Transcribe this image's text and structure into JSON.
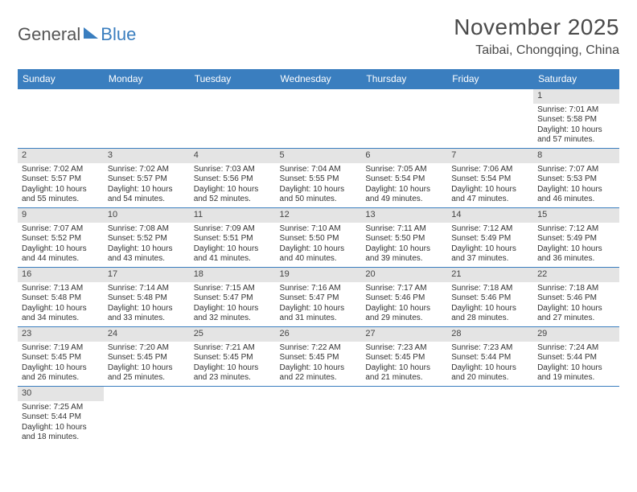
{
  "logo": {
    "part1": "General",
    "part2": "Blue"
  },
  "title": "November 2025",
  "location": "Taibai, Chongqing, China",
  "colors": {
    "header_bg": "#3a7ebf",
    "header_text": "#ffffff",
    "daynum_bg": "#e4e4e4",
    "border": "#3a7ebf",
    "text": "#333333",
    "page_bg": "#ffffff"
  },
  "fonts": {
    "title_size": 28,
    "location_size": 16,
    "dayhead_size": 12,
    "cell_size": 10
  },
  "day_headers": [
    "Sunday",
    "Monday",
    "Tuesday",
    "Wednesday",
    "Thursday",
    "Friday",
    "Saturday"
  ],
  "weeks": [
    [
      null,
      null,
      null,
      null,
      null,
      null,
      {
        "n": "1",
        "sunrise": "Sunrise: 7:01 AM",
        "sunset": "Sunset: 5:58 PM",
        "dl1": "Daylight: 10 hours",
        "dl2": "and 57 minutes."
      }
    ],
    [
      {
        "n": "2",
        "sunrise": "Sunrise: 7:02 AM",
        "sunset": "Sunset: 5:57 PM",
        "dl1": "Daylight: 10 hours",
        "dl2": "and 55 minutes."
      },
      {
        "n": "3",
        "sunrise": "Sunrise: 7:02 AM",
        "sunset": "Sunset: 5:57 PM",
        "dl1": "Daylight: 10 hours",
        "dl2": "and 54 minutes."
      },
      {
        "n": "4",
        "sunrise": "Sunrise: 7:03 AM",
        "sunset": "Sunset: 5:56 PM",
        "dl1": "Daylight: 10 hours",
        "dl2": "and 52 minutes."
      },
      {
        "n": "5",
        "sunrise": "Sunrise: 7:04 AM",
        "sunset": "Sunset: 5:55 PM",
        "dl1": "Daylight: 10 hours",
        "dl2": "and 50 minutes."
      },
      {
        "n": "6",
        "sunrise": "Sunrise: 7:05 AM",
        "sunset": "Sunset: 5:54 PM",
        "dl1": "Daylight: 10 hours",
        "dl2": "and 49 minutes."
      },
      {
        "n": "7",
        "sunrise": "Sunrise: 7:06 AM",
        "sunset": "Sunset: 5:54 PM",
        "dl1": "Daylight: 10 hours",
        "dl2": "and 47 minutes."
      },
      {
        "n": "8",
        "sunrise": "Sunrise: 7:07 AM",
        "sunset": "Sunset: 5:53 PM",
        "dl1": "Daylight: 10 hours",
        "dl2": "and 46 minutes."
      }
    ],
    [
      {
        "n": "9",
        "sunrise": "Sunrise: 7:07 AM",
        "sunset": "Sunset: 5:52 PM",
        "dl1": "Daylight: 10 hours",
        "dl2": "and 44 minutes."
      },
      {
        "n": "10",
        "sunrise": "Sunrise: 7:08 AM",
        "sunset": "Sunset: 5:52 PM",
        "dl1": "Daylight: 10 hours",
        "dl2": "and 43 minutes."
      },
      {
        "n": "11",
        "sunrise": "Sunrise: 7:09 AM",
        "sunset": "Sunset: 5:51 PM",
        "dl1": "Daylight: 10 hours",
        "dl2": "and 41 minutes."
      },
      {
        "n": "12",
        "sunrise": "Sunrise: 7:10 AM",
        "sunset": "Sunset: 5:50 PM",
        "dl1": "Daylight: 10 hours",
        "dl2": "and 40 minutes."
      },
      {
        "n": "13",
        "sunrise": "Sunrise: 7:11 AM",
        "sunset": "Sunset: 5:50 PM",
        "dl1": "Daylight: 10 hours",
        "dl2": "and 39 minutes."
      },
      {
        "n": "14",
        "sunrise": "Sunrise: 7:12 AM",
        "sunset": "Sunset: 5:49 PM",
        "dl1": "Daylight: 10 hours",
        "dl2": "and 37 minutes."
      },
      {
        "n": "15",
        "sunrise": "Sunrise: 7:12 AM",
        "sunset": "Sunset: 5:49 PM",
        "dl1": "Daylight: 10 hours",
        "dl2": "and 36 minutes."
      }
    ],
    [
      {
        "n": "16",
        "sunrise": "Sunrise: 7:13 AM",
        "sunset": "Sunset: 5:48 PM",
        "dl1": "Daylight: 10 hours",
        "dl2": "and 34 minutes."
      },
      {
        "n": "17",
        "sunrise": "Sunrise: 7:14 AM",
        "sunset": "Sunset: 5:48 PM",
        "dl1": "Daylight: 10 hours",
        "dl2": "and 33 minutes."
      },
      {
        "n": "18",
        "sunrise": "Sunrise: 7:15 AM",
        "sunset": "Sunset: 5:47 PM",
        "dl1": "Daylight: 10 hours",
        "dl2": "and 32 minutes."
      },
      {
        "n": "19",
        "sunrise": "Sunrise: 7:16 AM",
        "sunset": "Sunset: 5:47 PM",
        "dl1": "Daylight: 10 hours",
        "dl2": "and 31 minutes."
      },
      {
        "n": "20",
        "sunrise": "Sunrise: 7:17 AM",
        "sunset": "Sunset: 5:46 PM",
        "dl1": "Daylight: 10 hours",
        "dl2": "and 29 minutes."
      },
      {
        "n": "21",
        "sunrise": "Sunrise: 7:18 AM",
        "sunset": "Sunset: 5:46 PM",
        "dl1": "Daylight: 10 hours",
        "dl2": "and 28 minutes."
      },
      {
        "n": "22",
        "sunrise": "Sunrise: 7:18 AM",
        "sunset": "Sunset: 5:46 PM",
        "dl1": "Daylight: 10 hours",
        "dl2": "and 27 minutes."
      }
    ],
    [
      {
        "n": "23",
        "sunrise": "Sunrise: 7:19 AM",
        "sunset": "Sunset: 5:45 PM",
        "dl1": "Daylight: 10 hours",
        "dl2": "and 26 minutes."
      },
      {
        "n": "24",
        "sunrise": "Sunrise: 7:20 AM",
        "sunset": "Sunset: 5:45 PM",
        "dl1": "Daylight: 10 hours",
        "dl2": "and 25 minutes."
      },
      {
        "n": "25",
        "sunrise": "Sunrise: 7:21 AM",
        "sunset": "Sunset: 5:45 PM",
        "dl1": "Daylight: 10 hours",
        "dl2": "and 23 minutes."
      },
      {
        "n": "26",
        "sunrise": "Sunrise: 7:22 AM",
        "sunset": "Sunset: 5:45 PM",
        "dl1": "Daylight: 10 hours",
        "dl2": "and 22 minutes."
      },
      {
        "n": "27",
        "sunrise": "Sunrise: 7:23 AM",
        "sunset": "Sunset: 5:45 PM",
        "dl1": "Daylight: 10 hours",
        "dl2": "and 21 minutes."
      },
      {
        "n": "28",
        "sunrise": "Sunrise: 7:23 AM",
        "sunset": "Sunset: 5:44 PM",
        "dl1": "Daylight: 10 hours",
        "dl2": "and 20 minutes."
      },
      {
        "n": "29",
        "sunrise": "Sunrise: 7:24 AM",
        "sunset": "Sunset: 5:44 PM",
        "dl1": "Daylight: 10 hours",
        "dl2": "and 19 minutes."
      }
    ],
    [
      {
        "n": "30",
        "sunrise": "Sunrise: 7:25 AM",
        "sunset": "Sunset: 5:44 PM",
        "dl1": "Daylight: 10 hours",
        "dl2": "and 18 minutes."
      },
      null,
      null,
      null,
      null,
      null,
      null
    ]
  ]
}
